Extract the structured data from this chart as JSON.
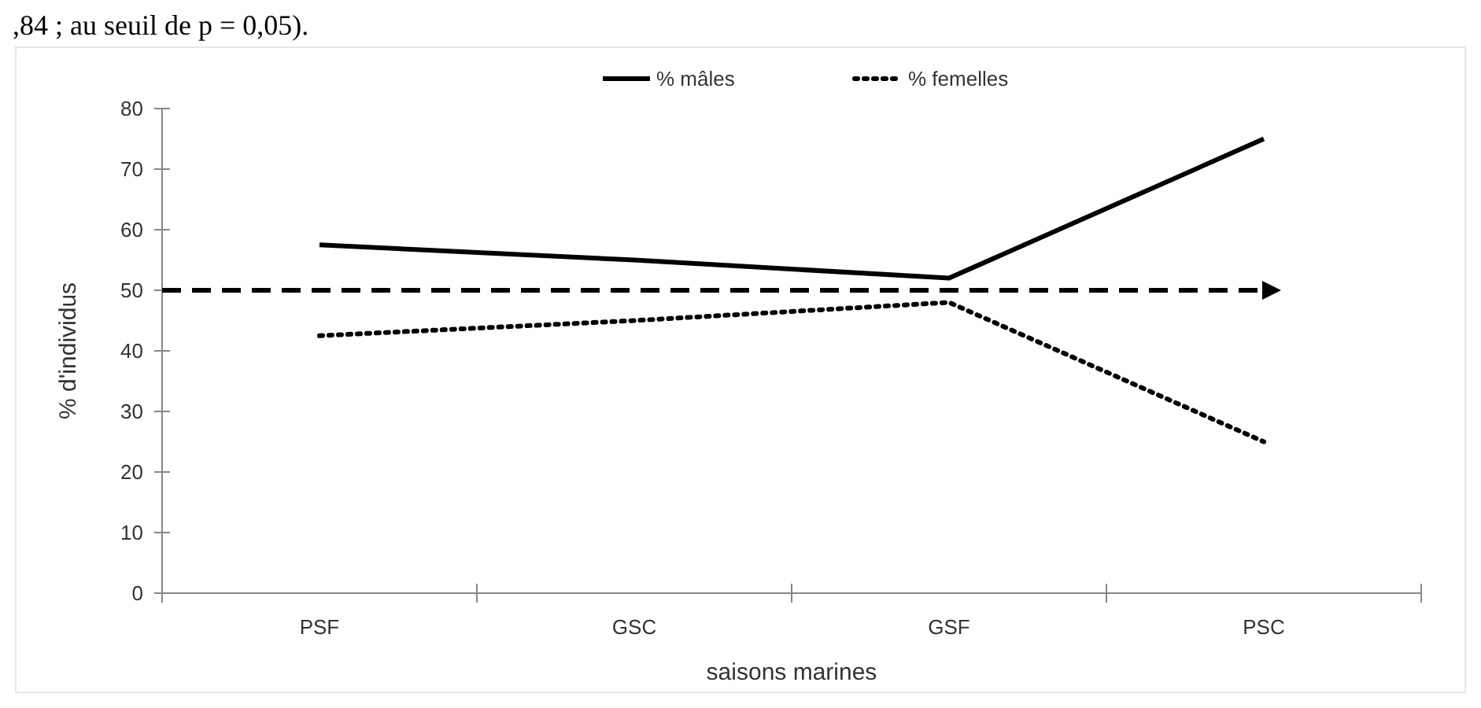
{
  "chart_data": {
    "type": "line",
    "xlabel": "saisons marines",
    "ylabel": "% d'individus",
    "categories": [
      "PSF",
      "GSC",
      "GSF",
      "PSC"
    ],
    "series": [
      {
        "name": "% mâles",
        "color": "#000000",
        "values": [
          57.5,
          55,
          52,
          75
        ],
        "line_style": "solid"
      },
      {
        "name": "% femelles",
        "color": "#000000",
        "values": [
          42.5,
          45,
          48,
          25
        ],
        "line_style": "dotted"
      }
    ],
    "ylim": [
      0,
      80
    ],
    "yticks": [
      0,
      10,
      20,
      30,
      40,
      50,
      60,
      70,
      80
    ],
    "ref_lines": [
      {
        "axis": "y",
        "value": 50,
        "color": "#000000",
        "line_style": "dashed"
      }
    ],
    "legend": "top",
    "marker": "none",
    "annotations": [
      ",84 ; au seuil de p = 0,05)."
    ]
  }
}
